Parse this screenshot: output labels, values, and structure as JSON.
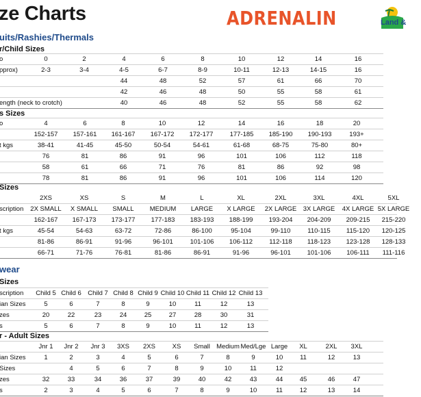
{
  "page": {
    "title": "ze Charts",
    "brand": "ADRENALIN",
    "badge_text": "Land &"
  },
  "colors": {
    "brand": "#e8542a",
    "section": "#1e4a8a"
  },
  "sections": [
    {
      "name": "uits/Rashies/Thermals"
    },
    {
      "name": "wear"
    }
  ],
  "tables": [
    {
      "heading": "r/Child Sizes",
      "cols": [
        40,
        67,
        123,
        181,
        238,
        296,
        353,
        410,
        465,
        523
      ],
      "rows": [
        {
          "label": "o",
          "cells": [
            "0",
            "2",
            "4",
            "6",
            "8",
            "10",
            "12",
            "14",
            "16"
          ]
        },
        {
          "label": "pprox)",
          "cells": [
            "2-3",
            "3-4",
            "4-5",
            "6-7",
            "8-9",
            "10-11",
            "12-13",
            "14-15",
            "16"
          ]
        },
        {
          "label": "",
          "cells": [
            "",
            "",
            "44",
            "48",
            "52",
            "57",
            "61",
            "66",
            "70"
          ]
        },
        {
          "label": "",
          "cells": [
            "",
            "",
            "42",
            "46",
            "48",
            "50",
            "55",
            "58",
            "61"
          ]
        },
        {
          "label": "ength (neck to crotch)",
          "cells": [
            "",
            "",
            "40",
            "46",
            "48",
            "52",
            "55",
            "58",
            "62"
          ]
        }
      ]
    },
    {
      "heading": "s Sizes",
      "cols": [
        67,
        124,
        180,
        237,
        294,
        353,
        410,
        467,
        521
      ],
      "rows": [
        {
          "label": "o",
          "cells": [
            "4",
            "6",
            "8",
            "10",
            "12",
            "14",
            "16",
            "18",
            "20"
          ]
        },
        {
          "label": "",
          "cells": [
            "152-157",
            "157-161",
            "161-167",
            "167-172",
            "172-177",
            "177-185",
            "185-190",
            "190-193",
            "193+"
          ]
        },
        {
          "label": "t kgs",
          "cells": [
            "38-41",
            "41-45",
            "45-50",
            "50-54",
            "54-61",
            "61-68",
            "68-75",
            "75-80",
            "80+"
          ]
        },
        {
          "label": "",
          "cells": [
            "76",
            "81",
            "86",
            "91",
            "96",
            "101",
            "106",
            "112",
            "118"
          ]
        },
        {
          "label": "",
          "cells": [
            "58",
            "61",
            "66",
            "71",
            "76",
            "81",
            "86",
            "92",
            "98"
          ]
        },
        {
          "label": "",
          "cells": [
            "78",
            "81",
            "86",
            "91",
            "96",
            "101",
            "106",
            "114",
            "120"
          ]
        }
      ]
    },
    {
      "heading": "Sizes",
      "cols": [
        67,
        123,
        180,
        238,
        295,
        352,
        410,
        466,
        523,
        575
      ],
      "rows": [
        {
          "label": "",
          "cells": [
            "2XS",
            "XS",
            "S",
            "M",
            "L",
            "XL",
            "2XL",
            "3XL",
            "4XL",
            "5XL"
          ]
        },
        {
          "label": "scription",
          "cells": [
            "2X SMALL",
            "X SMALL",
            "SMALL",
            "MEDIUM",
            "LARGE",
            "X LARGE",
            "2X LARGE",
            "3X LARGE",
            "4X LARGE",
            "5X LARGE"
          ]
        },
        {
          "label": "",
          "cells": [
            "162-167",
            "167-173",
            "173-177",
            "177-183",
            "183-193",
            "188-199",
            "193-204",
            "204-209",
            "209-215",
            "215-220"
          ]
        },
        {
          "label": "t kgs",
          "cells": [
            "45-54",
            "54-63",
            "63-72",
            "72-86",
            "86-100",
            "95-104",
            "99-110",
            "110-115",
            "115-120",
            "120-125"
          ]
        },
        {
          "label": "",
          "cells": [
            "81-86",
            "86-91",
            "91-96",
            "96-101",
            "101-106",
            "106-112",
            "112-118",
            "118-123",
            "123-128",
            "128-133"
          ]
        },
        {
          "label": "",
          "cells": [
            "66-71",
            "71-76",
            "76-81",
            "81-86",
            "86-91",
            "91-96",
            "96-101",
            "101-106",
            "106-111",
            "111-116"
          ]
        }
      ]
    },
    {
      "heading": "Sizes",
      "cols": [
        67,
        104,
        143,
        180,
        216,
        252,
        289,
        327,
        366
      ],
      "rows": [
        {
          "label": "scription",
          "cells": [
            "Child 5",
            "Child 6",
            "Child 7",
            "Child 8",
            "Child 9",
            "Child 10",
            "Child 11",
            "Child 12",
            "Child 13"
          ]
        },
        {
          "label": "ian Sizes",
          "cells": [
            "5",
            "6",
            "7",
            "8",
            "9",
            "10",
            "11",
            "12",
            "13"
          ]
        },
        {
          "label": "zes",
          "cells": [
            "20",
            "22",
            "23",
            "24",
            "25",
            "27",
            "28",
            "30",
            "31"
          ]
        },
        {
          "label": "s",
          "cells": [
            "5",
            "6",
            "7",
            "8",
            "9",
            "10",
            "11",
            "12",
            "13"
          ]
        }
      ]
    },
    {
      "heading": "r - Adult Sizes",
      "cols": [
        67,
        104,
        143,
        180,
        218,
        258,
        295,
        333,
        370,
        408,
        443,
        484,
        521
      ],
      "rows": [
        {
          "label": "",
          "cells": [
            "Jnr 1",
            "Jnr 2",
            "Jnr 3",
            "3XS",
            "2XS",
            "XS",
            "Small",
            "Medium",
            "Med/Lge",
            "Large",
            "XL",
            "2XL",
            "3XL"
          ]
        },
        {
          "label": "ian Sizes",
          "cells": [
            "1",
            "2",
            "3",
            "4",
            "5",
            "6",
            "7",
            "8",
            "9",
            "10",
            "11",
            "12",
            "13"
          ]
        },
        {
          "label": "Sizes",
          "cells": [
            "",
            "4",
            "5",
            "6",
            "7",
            "8",
            "9",
            "10",
            "11",
            "12",
            "",
            "",
            ""
          ]
        },
        {
          "label": "zes",
          "cells": [
            "32",
            "33",
            "34",
            "36",
            "37",
            "39",
            "40",
            "42",
            "43",
            "44",
            "45",
            "46",
            "47"
          ]
        },
        {
          "label": "s",
          "cells": [
            "2",
            "3",
            "4",
            "5",
            "6",
            "7",
            "8",
            "9",
            "10",
            "11",
            "12",
            "13",
            "14"
          ]
        }
      ]
    }
  ]
}
